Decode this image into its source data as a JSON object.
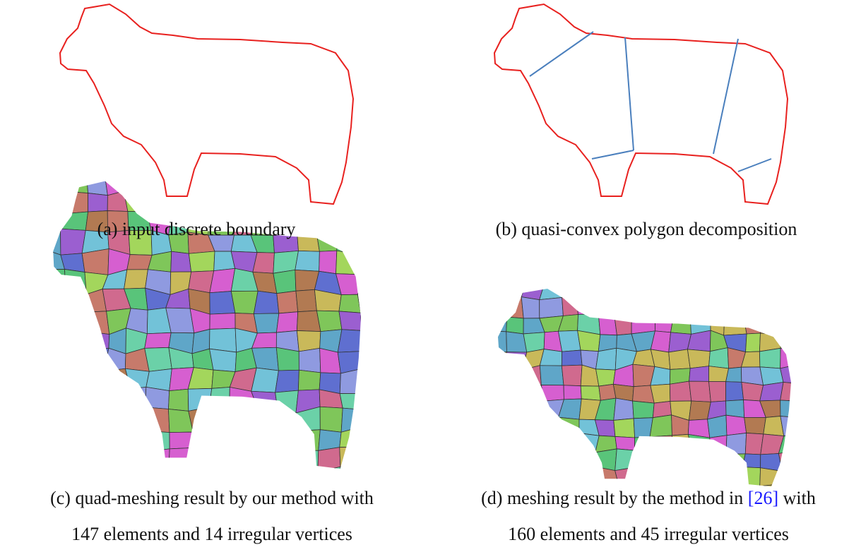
{
  "figure": {
    "panels": [
      {
        "caption_lines": [
          "(a) input discrete boundary"
        ]
      },
      {
        "caption_lines": [
          "(b) quasi-convex polygon decomposition"
        ]
      },
      {
        "caption_lines": [
          "(c) quad-meshing result by our method with",
          "147 elements and 14 irregular vertices"
        ]
      },
      {
        "caption_start": "(d) meshing result by the method in",
        "citation": "[26]",
        "caption_end": "with",
        "caption_lines": [
          "160 elements and 45 irregular vertices"
        ]
      }
    ]
  }
}
